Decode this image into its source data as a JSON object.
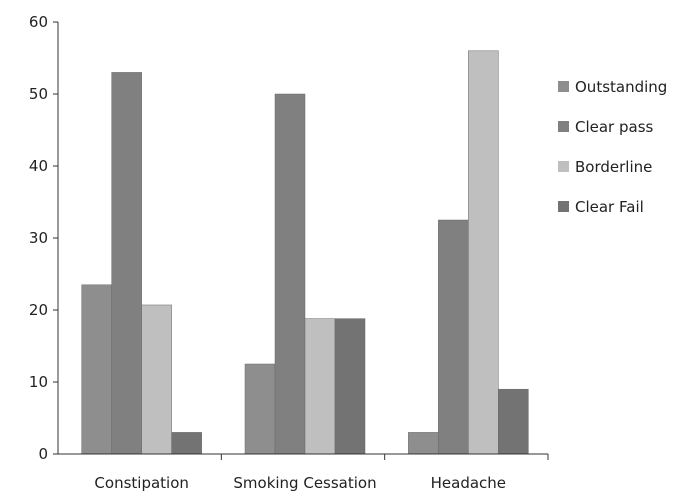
{
  "chart_data": {
    "type": "bar",
    "title": "",
    "xlabel": "",
    "ylabel": "",
    "ylim": [
      0,
      60
    ],
    "yticks": [
      0,
      10,
      20,
      30,
      40,
      50,
      60
    ],
    "grid": false,
    "legend_position": "right",
    "categories": [
      "Constipation",
      "Smoking Cessation",
      "Headache"
    ],
    "series": [
      {
        "name": "Outstanding",
        "color": "#8e8e8e",
        "values": [
          23.5,
          12.5,
          3
        ]
      },
      {
        "name": "Clear pass",
        "color": "#808080",
        "values": [
          53,
          50,
          32.5
        ]
      },
      {
        "name": "Borderline",
        "color": "#bfbfbf",
        "values": [
          20.7,
          18.8,
          56
        ]
      },
      {
        "name": "Clear Fail",
        "color": "#737373",
        "values": [
          3,
          18.8,
          9
        ]
      }
    ]
  }
}
